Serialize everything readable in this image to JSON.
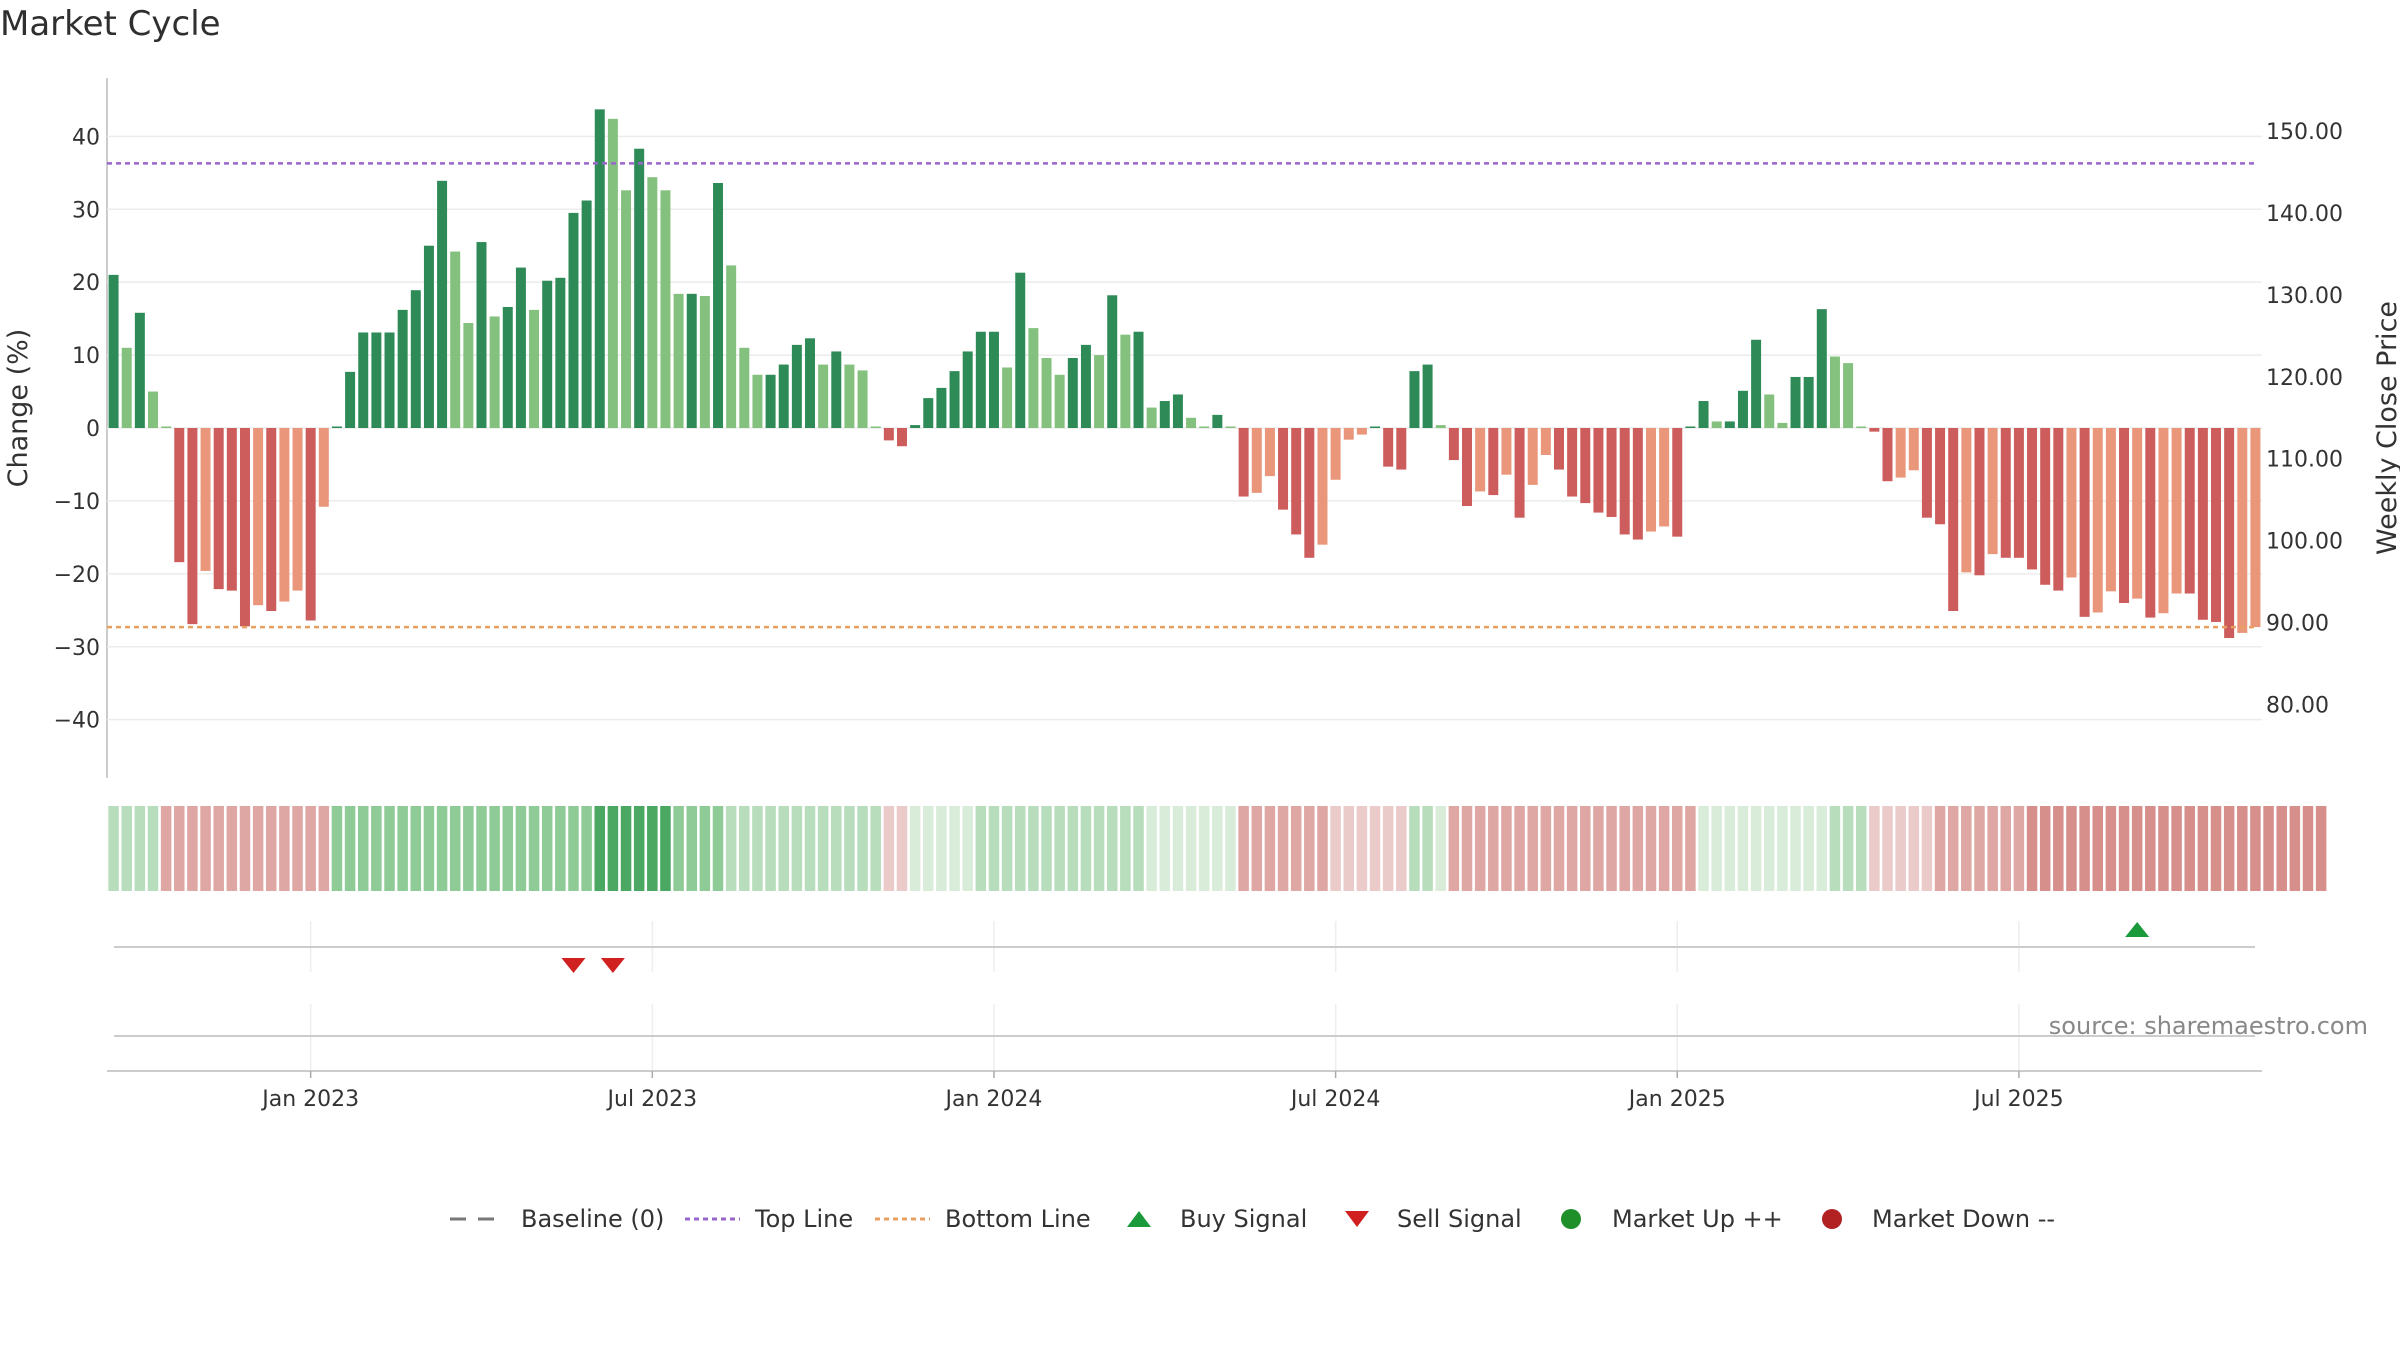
{
  "chart_data": {
    "type": "bar",
    "title": "Market Cycle",
    "ylabel_left": "Change (%)",
    "ylabel_right": "Weekly Close Price",
    "ylim_left": [
      -48,
      48
    ],
    "yticks_left": [
      "40",
      "30",
      "20",
      "10",
      "0",
      "−10",
      "−20",
      "−30",
      "−40"
    ],
    "ylim_right": [
      71.0,
      156.5
    ],
    "yticks_right": [
      "150.00",
      "140.00",
      "130.00",
      "120.00",
      "110.00",
      "100.00",
      "90.00",
      "80.00"
    ],
    "top_line": 36.3,
    "bottom_line": -27.3,
    "x_ticks": [
      {
        "label": "Jan 2023",
        "index": 15
      },
      {
        "label": "Jul 2023",
        "index": 41
      },
      {
        "label": "Jan 2024",
        "index": 67
      },
      {
        "label": "Jul 2024",
        "index": 93
      },
      {
        "label": "Jan 2025",
        "index": 119
      },
      {
        "label": "Jul 2025",
        "index": 145
      }
    ],
    "values": [
      21,
      11,
      15.8,
      5,
      0,
      -18.4,
      -26.9,
      -19.6,
      -22.1,
      -22.3,
      -27.2,
      -24.3,
      -25.1,
      -23.8,
      -22.3,
      -26.4,
      -10.8,
      0,
      7.7,
      13.1,
      13.1,
      13.1,
      16.2,
      18.9,
      25,
      33.9,
      24.2,
      14.4,
      25.5,
      15.3,
      16.6,
      22,
      16.2,
      20.2,
      20.6,
      29.5,
      31.2,
      43.7,
      42.4,
      32.6,
      38.3,
      34.4,
      32.6,
      18.4,
      18.4,
      18.1,
      33.6,
      22.3,
      11,
      7.3,
      7.3,
      8.7,
      11.4,
      12.3,
      8.7,
      10.5,
      8.7,
      7.9,
      0,
      -1.7,
      -2.5,
      0.4,
      4.1,
      5.5,
      7.8,
      10.5,
      13.2,
      13.2,
      8.3,
      21.3,
      13.7,
      9.6,
      7.3,
      9.6,
      11.4,
      10,
      18.2,
      12.8,
      13.2,
      2.8,
      3.7,
      4.6,
      1.4,
      0,
      1.8,
      0,
      -9.4,
      -8.9,
      -6.6,
      -11.2,
      -14.6,
      -17.8,
      -16,
      -7.1,
      -1.6,
      -0.9,
      0,
      -5.3,
      -5.7,
      7.8,
      8.7,
      0.4,
      -4.4,
      -10.7,
      -8.7,
      -9.2,
      -6.4,
      -12.3,
      -7.8,
      -3.7,
      -5.7,
      -9.4,
      -10.3,
      -11.6,
      -12.2,
      -14.6,
      -15.3,
      -14.2,
      -13.5,
      -14.9,
      0,
      3.7,
      0.9,
      0.9,
      5.1,
      12.1,
      4.6,
      0.7,
      7,
      7,
      16.3,
      9.8,
      8.9,
      0,
      -0.5,
      -7.3,
      -6.8,
      -5.8,
      -12.3,
      -13.2,
      -25.1,
      -19.8,
      -20.2,
      -17.3,
      -17.8,
      -17.8,
      -19.4,
      -21.5,
      -22.3,
      -20.5,
      -25.9,
      -25.3,
      -22.4,
      -24,
      -23.4,
      -26,
      -25.4,
      -22.7,
      -22.7,
      -26.3,
      -26.6,
      -28.8,
      -28.1,
      -27.3
    ],
    "bar_colors": [
      "#2e8b57",
      "#85c17e",
      "#e9967a",
      "#cd5c5c"
    ],
    "band_colors": [
      "#4aa862",
      "#8fcb97",
      "#b7ddbd",
      "#d8ecd9",
      "#ebcaca",
      "#dea7a4",
      "#d68f8b"
    ],
    "band_levels": [
      2,
      2,
      2,
      2,
      5,
      5,
      5,
      5,
      5,
      5,
      5,
      5,
      5,
      5,
      5,
      5,
      5,
      1,
      1,
      1,
      1,
      1,
      1,
      1,
      1,
      1,
      1,
      1,
      1,
      1,
      1,
      1,
      1,
      1,
      1,
      1,
      1,
      0,
      0,
      0,
      0,
      0,
      0,
      1,
      1,
      1,
      1,
      2,
      2,
      2,
      2,
      2,
      2,
      2,
      2,
      2,
      2,
      2,
      2,
      4,
      4,
      3,
      3,
      3,
      3,
      3,
      2,
      2,
      2,
      2,
      2,
      2,
      2,
      2,
      2,
      2,
      2,
      2,
      2,
      3,
      3,
      3,
      3,
      3,
      3,
      3,
      5,
      5,
      5,
      5,
      5,
      5,
      5,
      4,
      4,
      4,
      4,
      4,
      4,
      2,
      2,
      3,
      5,
      5,
      5,
      5,
      5,
      5,
      5,
      5,
      5,
      5,
      5,
      5,
      5,
      5,
      5,
      5,
      5,
      5,
      5,
      3,
      3,
      3,
      3,
      3,
      3,
      3,
      3,
      3,
      3,
      2,
      2,
      2,
      4,
      4,
      4,
      4,
      4,
      5,
      5,
      5,
      5,
      5,
      5,
      5,
      6,
      6,
      6,
      6,
      6,
      6,
      6,
      6,
      6,
      6,
      6,
      6,
      6,
      6,
      6,
      6,
      6,
      6,
      6,
      6,
      6,
      6,
      6
    ],
    "buy_signals": [
      154
    ],
    "sell_signals": [
      35,
      38
    ],
    "source_text": "source: sharemaestro.com",
    "legend": [
      "Baseline (0)",
      "Top Line",
      "Bottom Line",
      "Buy Signal",
      "Sell Signal",
      "Market Up ++",
      "Market Down --"
    ],
    "colors": {
      "top_line": "#9966cc",
      "bottom_line": "#e8a060",
      "baseline": "#777777",
      "buy": "#1a9a3a",
      "sell": "#d02020",
      "up": "#1f8f2a",
      "down": "#b22222"
    }
  }
}
